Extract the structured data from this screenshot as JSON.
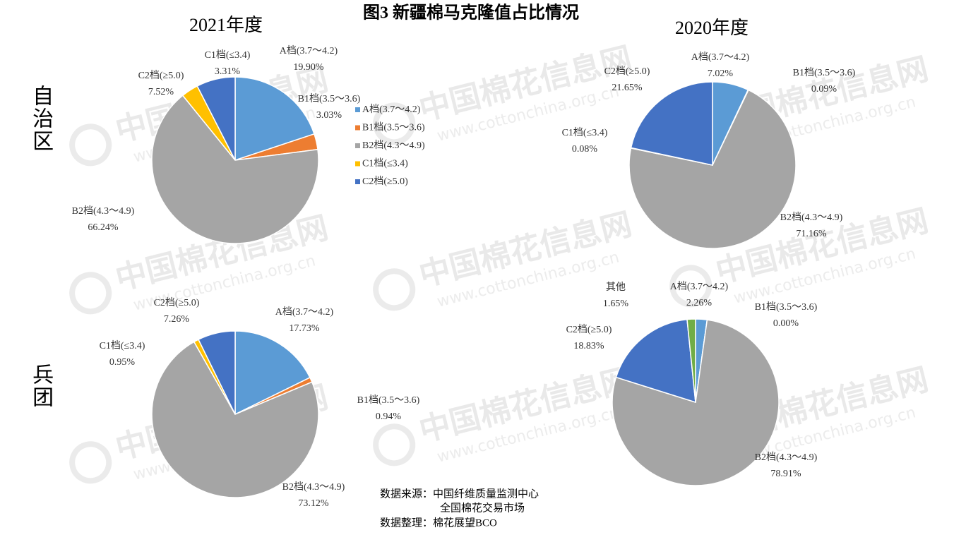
{
  "title": "图3 新疆棉马克隆值占比情况",
  "column_titles": [
    "2021年度",
    "2020年度"
  ],
  "row_labels": [
    "自治区",
    "兵团"
  ],
  "source": [
    "数据来源：中国纤维质量监测中心",
    "全国棉花交易市场",
    "数据整理：棉花展望BCO"
  ],
  "watermark": {
    "name": "中国棉花信息网",
    "url": "www.cottonchina.org.cn"
  },
  "chart_data": [
    {
      "type": "pie",
      "categories": [
        "A档(3.7～4.2)",
        "B1档(3.5～3.6)",
        "B2档(4.3～4.9)",
        "C1档(≤3.4)",
        "C2档(≥5.0)"
      ],
      "values": [
        19.9,
        3.03,
        66.24,
        3.31,
        7.52
      ],
      "value_labels": [
        "19.90%",
        "3.03%",
        "66.24%",
        "3.31%",
        "7.52%"
      ],
      "colors": [
        "#5b9bd5",
        "#ed7d31",
        "#a5a5a5",
        "#ffc000",
        "#4472c4"
      ],
      "legend": true
    },
    {
      "type": "pie",
      "categories": [
        "A档(3.7～4.2)",
        "B1档(3.5～3.6)",
        "B2档(4.3～4.9)",
        "C1档(≤3.4)",
        "C2档(≥5.0)"
      ],
      "values": [
        7.02,
        0.09,
        71.16,
        0.08,
        21.65
      ],
      "value_labels": [
        "7.02%",
        "0.09%",
        "71.16%",
        "0.08%",
        "21.65%"
      ],
      "colors": [
        "#5b9bd5",
        "#ed7d31",
        "#a5a5a5",
        "#ffc000",
        "#4472c4"
      ],
      "legend": false
    },
    {
      "type": "pie",
      "categories": [
        "A档(3.7～4.2)",
        "B1档(3.5～3.6)",
        "B2档(4.3～4.9)",
        "C1档(≤3.4)",
        "C2档(≥5.0)"
      ],
      "values": [
        17.73,
        0.94,
        73.12,
        0.95,
        7.26
      ],
      "value_labels": [
        "17.73%",
        "0.94%",
        "73.12%",
        "0.95%",
        "7.26%"
      ],
      "colors": [
        "#5b9bd5",
        "#ed7d31",
        "#a5a5a5",
        "#ffc000",
        "#4472c4"
      ],
      "legend": false
    },
    {
      "type": "pie",
      "categories": [
        "A档(3.7～4.2)",
        "B1档(3.5～3.6)",
        "B2档(4.3～4.9)",
        "C2档(≥5.0)",
        "其他"
      ],
      "values": [
        2.26,
        0.0,
        78.91,
        18.83,
        1.65
      ],
      "value_labels": [
        "2.26%",
        "0.00%",
        "78.91%",
        "18.83%",
        "1.65%"
      ],
      "colors": [
        "#5b9bd5",
        "#ed7d31",
        "#a5a5a5",
        "#4472c4",
        "#70ad47"
      ],
      "legend": false
    }
  ]
}
